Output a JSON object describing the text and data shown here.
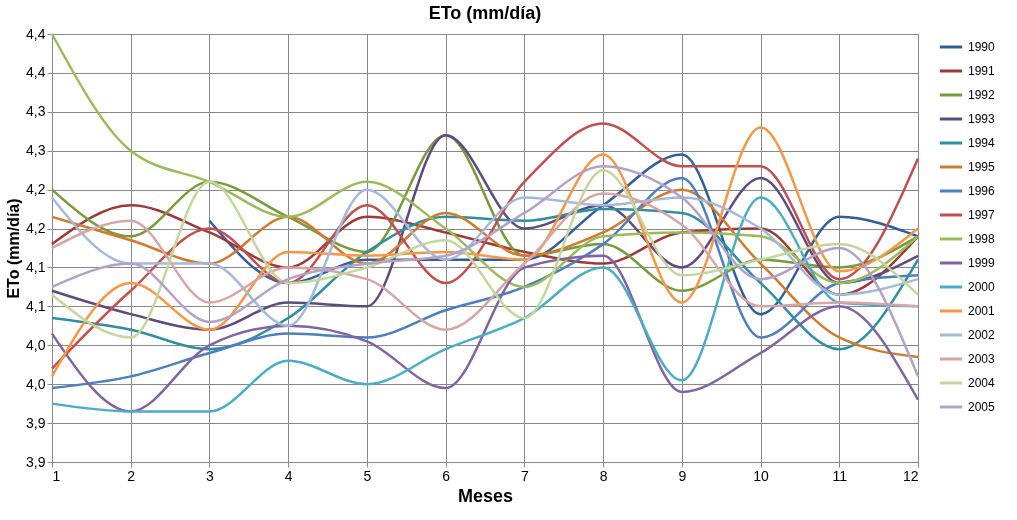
{
  "chart_data": {
    "type": "line",
    "title": "ETo (mm/día)",
    "xlabel": "Meses",
    "ylabel": "ETo (mm/día)",
    "x": [
      1,
      2,
      3,
      4,
      5,
      6,
      7,
      8,
      9,
      10,
      11,
      12
    ],
    "xlim": [
      1,
      12
    ],
    "xticks": [
      1,
      2,
      3,
      4,
      5,
      6,
      7,
      8,
      9,
      10,
      11,
      12
    ],
    "ylim": [
      3.85,
      4.4
    ],
    "yticks": [
      {
        "value": 3.85,
        "label": "3,9"
      },
      {
        "value": 3.9,
        "label": "3,9"
      },
      {
        "value": 3.95,
        "label": "4,0"
      },
      {
        "value": 4.0,
        "label": "4,0"
      },
      {
        "value": 4.05,
        "label": "4,1"
      },
      {
        "value": 4.1,
        "label": "4,1"
      },
      {
        "value": 4.15,
        "label": "4,2"
      },
      {
        "value": 4.2,
        "label": "4,2"
      },
      {
        "value": 4.25,
        "label": "4,3"
      },
      {
        "value": 4.3,
        "label": "4,3"
      },
      {
        "value": 4.35,
        "label": "4,4"
      },
      {
        "value": 4.4,
        "label": "4,4"
      }
    ],
    "grid": true,
    "legend": "right",
    "marker": "none",
    "line_style": "solid",
    "series": [
      {
        "name": "1990",
        "color": "#2f5f98",
        "values": [
          null,
          null,
          4.16,
          4.08,
          4.11,
          4.11,
          4.11,
          4.18,
          4.245,
          4.04,
          4.165,
          4.14
        ]
      },
      {
        "name": "1991",
        "color": "#9c3a37",
        "values": [
          4.13,
          4.18,
          4.145,
          4.1,
          4.165,
          4.145,
          4.12,
          4.105,
          4.145,
          4.15,
          4.065,
          4.14
        ]
      },
      {
        "name": "1992",
        "color": "#779a3c",
        "values": [
          4.2,
          4.14,
          4.21,
          4.165,
          4.12,
          4.27,
          4.115,
          4.13,
          4.07,
          4.11,
          4.1,
          4.14
        ]
      },
      {
        "name": "1993",
        "color": "#5f4a80",
        "values": [
          4.07,
          4.04,
          4.02,
          4.055,
          4.05,
          4.27,
          4.15,
          4.18,
          4.1,
          4.215,
          4.08,
          4.115
        ]
      },
      {
        "name": "1994",
        "color": "#2f8fa0",
        "values": [
          4.035,
          4.02,
          3.995,
          4.035,
          4.12,
          4.165,
          4.16,
          4.175,
          4.17,
          4.08,
          3.995,
          4.11
        ]
      },
      {
        "name": "1995",
        "color": "#d07a30",
        "values": [
          4.165,
          4.135,
          4.105,
          4.165,
          4.105,
          4.17,
          4.115,
          4.145,
          4.2,
          4.105,
          4.01,
          3.985
        ]
      },
      {
        "name": "1996",
        "color": "#4a7fc0",
        "values": [
          3.945,
          3.96,
          3.99,
          4.015,
          4.01,
          4.045,
          4.075,
          4.13,
          4.215,
          4.01,
          4.08,
          4.09
        ]
      },
      {
        "name": "1997",
        "color": "#c0504d",
        "values": [
          3.97,
          4.07,
          4.15,
          4.08,
          4.18,
          4.08,
          4.21,
          4.285,
          4.23,
          4.23,
          4.085,
          4.24
        ]
      },
      {
        "name": "1998",
        "color": "#9bbb59",
        "values": [
          4.4,
          4.25,
          4.21,
          4.165,
          4.21,
          4.15,
          4.075,
          4.14,
          4.145,
          4.14,
          4.08,
          4.14
        ]
      },
      {
        "name": "1999",
        "color": "#8064a2",
        "values": [
          4.015,
          3.915,
          4.0,
          4.025,
          4.005,
          3.945,
          4.1,
          4.115,
          3.94,
          3.99,
          4.05,
          3.93
        ]
      },
      {
        "name": "2000",
        "color": "#4bacc6",
        "values": [
          3.925,
          3.915,
          3.915,
          3.98,
          3.95,
          3.995,
          4.035,
          4.1,
          3.955,
          4.19,
          4.055,
          4.05
        ]
      },
      {
        "name": "2001",
        "color": "#f79646",
        "values": [
          3.96,
          4.08,
          4.02,
          4.12,
          4.115,
          4.12,
          4.11,
          4.245,
          4.055,
          4.28,
          4.095,
          4.15
        ]
      },
      {
        "name": "2002",
        "color": "#a5b9dc",
        "values": [
          4.19,
          4.105,
          4.105,
          4.025,
          4.2,
          4.11,
          4.19,
          4.18,
          4.19,
          4.15,
          4.065,
          4.085
        ]
      },
      {
        "name": "2003",
        "color": "#d7a5a5",
        "values": [
          4.125,
          4.16,
          4.055,
          4.1,
          4.085,
          4.02,
          4.105,
          4.195,
          4.155,
          4.05,
          4.055,
          4.05
        ]
      },
      {
        "name": "2004",
        "color": "#c3d69b",
        "values": [
          4.065,
          4.01,
          4.21,
          4.08,
          4.1,
          4.135,
          4.035,
          4.225,
          4.09,
          4.11,
          4.13,
          4.065
        ]
      },
      {
        "name": "2005",
        "color": "#b3a2c7",
        "values": [
          4.075,
          4.105,
          4.03,
          4.085,
          4.105,
          4.115,
          4.17,
          4.23,
          4.19,
          4.085,
          4.125,
          3.96
        ]
      }
    ]
  }
}
